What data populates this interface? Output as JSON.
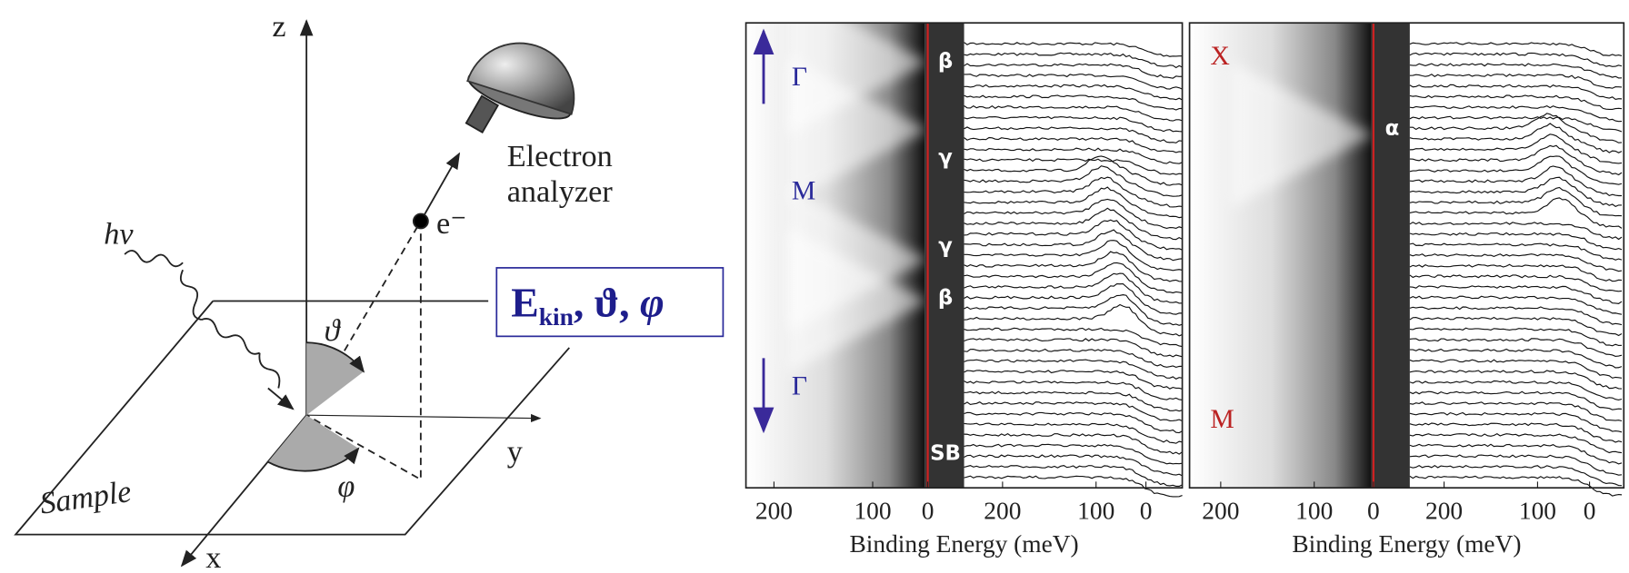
{
  "diagram": {
    "axis_z": "z",
    "axis_x": "x",
    "axis_y": "y",
    "photon": "hν",
    "electron": "e⁻",
    "analyzer": [
      "Electron",
      "analyzer"
    ],
    "measured": [
      "E",
      "kin",
      ", ϑ, ",
      "φ"
    ],
    "theta": "ϑ",
    "phi": "φ",
    "sample": "Sample"
  },
  "panels": [
    {
      "markers": [
        "β",
        "γ",
        "γ",
        "β",
        "SB"
      ],
      "points": [
        "Γ",
        "M",
        "Γ"
      ],
      "ticks": [
        "200",
        "100",
        "0",
        "200",
        "100",
        "0"
      ],
      "xlabel": "Binding Energy (meV)"
    },
    {
      "markers": [
        "α"
      ],
      "points": [
        "X",
        "M"
      ],
      "ticks": [
        "200",
        "100",
        "0",
        "200",
        "100",
        "0"
      ],
      "xlabel": "Binding Energy (meV)"
    }
  ]
}
